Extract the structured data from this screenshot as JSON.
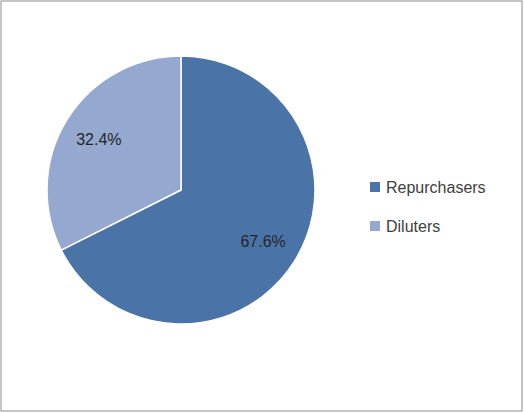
{
  "chart_data": {
    "type": "pie",
    "categories": [
      "Repurchasers",
      "Diluters"
    ],
    "values": [
      67.6,
      32.4
    ],
    "value_labels": [
      "67.6%",
      "32.4%"
    ],
    "colors": [
      "#4a74a8",
      "#95a8d0"
    ],
    "data_labels": true,
    "legend": "right"
  }
}
